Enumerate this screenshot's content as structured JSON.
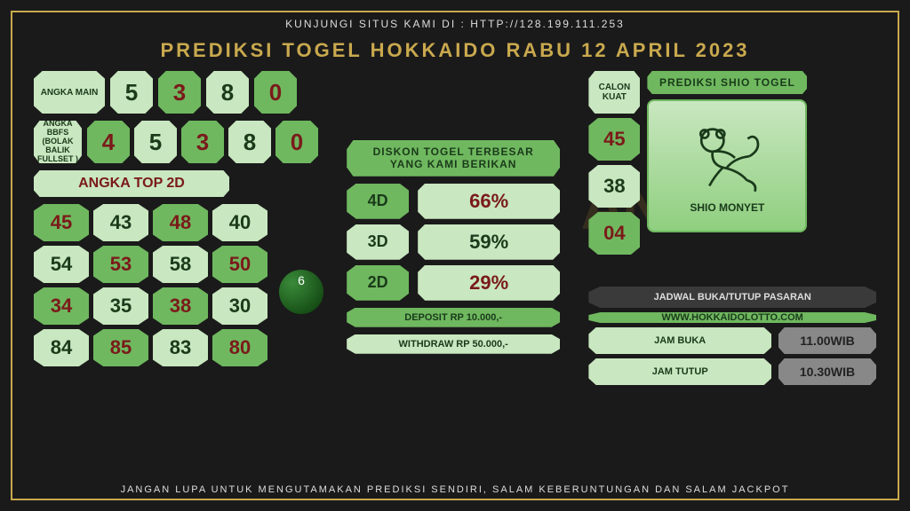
{
  "top_text": "KUNJUNGI SITUS KAMI DI : HTTP://128.199.111.253",
  "title": "PREDIKSI TOGEL HOKKAIDO RABU 12  APRIL 2023",
  "bottom_text": "JANGAN LUPA UNTUK MENGUTAMAKAN PREDIKSI SENDIRI, SALAM KEBERUNTUNGAN DAN SALAM JACKPOT",
  "colors": {
    "frame": "#c9a94e",
    "tile_light": "#c9e7c0",
    "tile_dark": "#6fb85f",
    "text_red": "#7a1a1a",
    "text_dark": "#1a3a1a",
    "bg": "#1a1a1a"
  },
  "angka_main": {
    "label": "ANGKA MAIN",
    "values": [
      "5",
      "3",
      "8",
      "0"
    ],
    "value_colors": [
      "#1a3a1a",
      "#7a1a1a",
      "#1a3a1a",
      "#7a1a1a"
    ],
    "tile_bgs": [
      "#c9e7c0",
      "#6fb85f",
      "#c9e7c0",
      "#6fb85f"
    ]
  },
  "angka_bbfs": {
    "label": "ANGKA BBFS (BOLAK BALIK FULLSET )",
    "values": [
      "4",
      "5",
      "3",
      "8",
      "0"
    ],
    "value_colors": [
      "#7a1a1a",
      "#1a3a1a",
      "#7a1a1a",
      "#1a3a1a",
      "#7a1a1a"
    ],
    "tile_bgs": [
      "#6fb85f",
      "#c9e7c0",
      "#6fb85f",
      "#c9e7c0",
      "#6fb85f"
    ]
  },
  "top2d": {
    "header": "ANGKA TOP 2D",
    "cells": [
      "45",
      "43",
      "48",
      "40",
      "54",
      "53",
      "58",
      "50",
      "34",
      "35",
      "38",
      "30",
      "84",
      "85",
      "83",
      "80"
    ],
    "cell_bgs": [
      "#6fb85f",
      "#c9e7c0",
      "#6fb85f",
      "#c9e7c0",
      "#c9e7c0",
      "#6fb85f",
      "#c9e7c0",
      "#6fb85f",
      "#6fb85f",
      "#c9e7c0",
      "#6fb85f",
      "#c9e7c0",
      "#c9e7c0",
      "#6fb85f",
      "#c9e7c0",
      "#6fb85f"
    ],
    "cell_colors": [
      "#7a1a1a",
      "#1a3a1a",
      "#7a1a1a",
      "#1a3a1a",
      "#1a3a1a",
      "#7a1a1a",
      "#1a3a1a",
      "#7a1a1a",
      "#7a1a1a",
      "#1a3a1a",
      "#7a1a1a",
      "#1a3a1a",
      "#1a3a1a",
      "#7a1a1a",
      "#1a3a1a",
      "#7a1a1a"
    ]
  },
  "diskon": {
    "header": "DISKON TOGEL TERBESAR YANG KAMI BERIKAN",
    "rows": [
      {
        "label": "4D",
        "value": "66%",
        "label_bg": "#6fb85f",
        "val_color": "#7a1a1a"
      },
      {
        "label": "3D",
        "value": "59%",
        "label_bg": "#c9e7c0",
        "val_color": "#1a3a1a"
      },
      {
        "label": "2D",
        "value": "29%",
        "label_bg": "#6fb85f",
        "val_color": "#7a1a1a"
      }
    ],
    "deposit": "DEPOSIT RP 10.000,-",
    "withdraw": "WITHDRAW RP 50.000,-"
  },
  "calon": {
    "label": "CALON KUAT",
    "values": [
      "45",
      "38",
      "04"
    ],
    "bgs": [
      "#6fb85f",
      "#c9e7c0",
      "#6fb85f"
    ],
    "colors": [
      "#7a1a1a",
      "#1a3a1a",
      "#7a1a1a"
    ]
  },
  "shio": {
    "header": "PREDIKSI SHIO TOGEL",
    "name": "SHIO MONYET"
  },
  "schedule": {
    "header": "JADWAL BUKA/TUTUP PASARAN",
    "site": "WWW.HOKKAIDOLOTTO.COM",
    "buka_label": "JAM BUKA",
    "buka_val": "11.00WIB",
    "tutup_label": "JAM TUTUP",
    "tutup_val": "10.30WIB"
  },
  "watermark": "ANGKA",
  "ball": "6"
}
